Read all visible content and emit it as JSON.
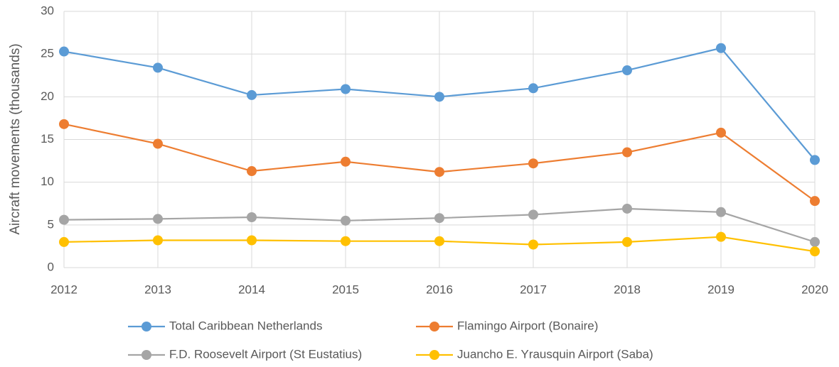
{
  "chart_data": {
    "type": "line",
    "y_label": "Aircraft movements (thousands)",
    "categories": [
      "2012",
      "2013",
      "2014",
      "2015",
      "2016",
      "2017",
      "2018",
      "2019",
      "2020"
    ],
    "series": [
      {
        "name": "Total Caribbean Netherlands",
        "color": "#5b9bd5",
        "values": [
          25.3,
          23.4,
          20.2,
          20.9,
          20.0,
          21.0,
          23.1,
          25.7,
          12.6
        ]
      },
      {
        "name": "Flamingo Airport (Bonaire)",
        "color": "#ed7d31",
        "values": [
          16.8,
          14.5,
          11.3,
          12.4,
          11.2,
          12.2,
          13.5,
          15.8,
          7.8
        ]
      },
      {
        "name": "F.D. Roosevelt Airport (St Eustatius)",
        "color": "#a5a5a5",
        "values": [
          5.6,
          5.7,
          5.9,
          5.5,
          5.8,
          6.2,
          6.9,
          6.5,
          3.0
        ]
      },
      {
        "name": "Juancho E. Yrausquin Airport (Saba)",
        "color": "#ffc000",
        "values": [
          3.0,
          3.2,
          3.2,
          3.1,
          3.1,
          2.7,
          3.0,
          3.6,
          1.9
        ]
      }
    ],
    "ylim": [
      0,
      30
    ],
    "yticks": [
      0,
      5,
      10,
      15,
      20,
      25,
      30
    ],
    "grid": true
  }
}
